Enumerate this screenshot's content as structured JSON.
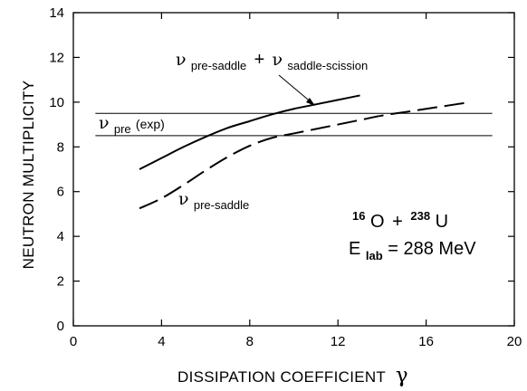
{
  "chart_data": {
    "type": "line",
    "title": "",
    "xlabel": "DISSIPATION COEFFICIENT",
    "xlabel_symbol": "γ",
    "ylabel": "NEUTRON MULTIPLICITY",
    "xlim": [
      0,
      20
    ],
    "ylim": [
      0,
      14
    ],
    "xticks": [
      "0",
      "4",
      "8",
      "12",
      "16",
      "20"
    ],
    "yticks": [
      "0",
      "2",
      "4",
      "6",
      "8",
      "10",
      "12",
      "14"
    ],
    "grid": false,
    "series": [
      {
        "style": "solid",
        "x": [
          3,
          4,
          5,
          6,
          7,
          8,
          9,
          10,
          11,
          12,
          13
        ],
        "y": [
          7.0,
          7.5,
          8.0,
          8.45,
          8.85,
          9.15,
          9.45,
          9.7,
          9.9,
          10.1,
          10.3
        ]
      },
      {
        "style": "dashed",
        "x": [
          3,
          4,
          5,
          6,
          7,
          8,
          9,
          10,
          11,
          12,
          13,
          14,
          15,
          16,
          17,
          18
        ],
        "y": [
          5.25,
          5.7,
          6.3,
          6.95,
          7.55,
          8.05,
          8.4,
          8.6,
          8.8,
          9.0,
          9.2,
          9.4,
          9.55,
          9.7,
          9.85,
          10.0
        ]
      }
    ],
    "hlines": [
      {
        "y": 9.5,
        "x": [
          1,
          19
        ]
      },
      {
        "y": 8.5,
        "x": [
          1,
          19
        ]
      }
    ],
    "annotations": {
      "total": {
        "nu": "ν",
        "sub1": "pre-saddle",
        "plus": "+",
        "nu2": "ν",
        "sub2": "saddle-scission"
      },
      "exp": {
        "nu": "ν",
        "sub": "pre",
        "suffix": "(exp)"
      },
      "presaddle": {
        "nu": "ν",
        "sub": "pre-saddle"
      },
      "reaction": {
        "a1": "16",
        "e1": "O",
        "plus": "+",
        "a2": "238",
        "e2": "U"
      },
      "energy": {
        "e": "E",
        "sub": "lab",
        "value": "= 288 MeV"
      }
    }
  }
}
